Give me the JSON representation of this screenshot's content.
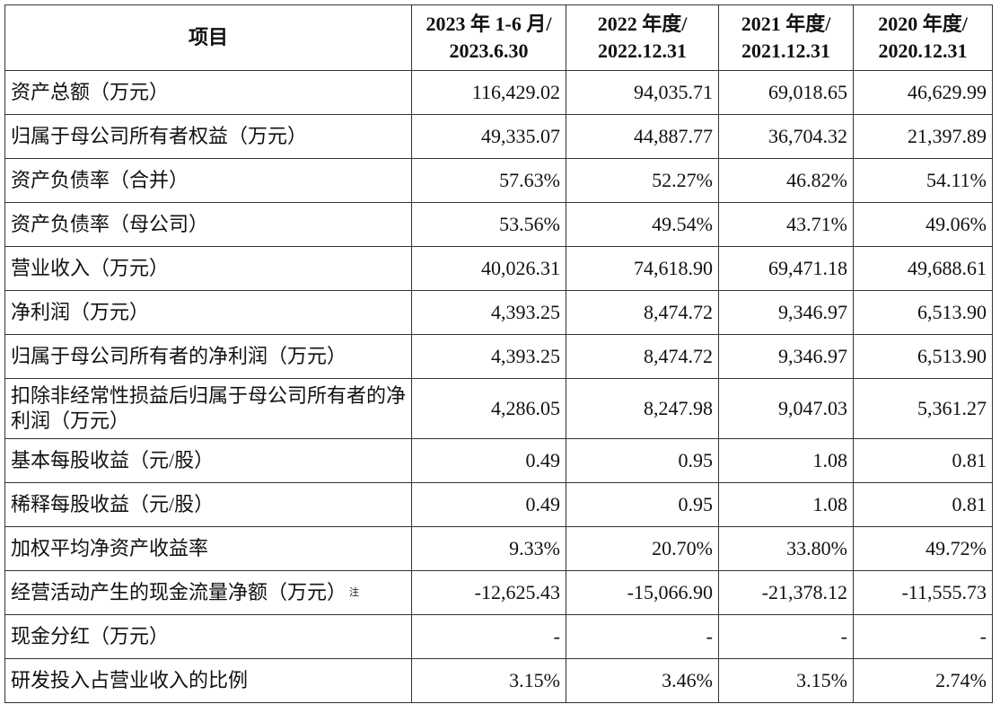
{
  "table": {
    "header": [
      [
        "项目"
      ],
      [
        "2023 年 1-6 月/",
        "2023.6.30"
      ],
      [
        "2022 年度/",
        "2022.12.31"
      ],
      [
        "2021 年度/",
        "2021.12.31"
      ],
      [
        "2020 年度/",
        "2020.12.31"
      ]
    ],
    "rows": [
      {
        "label": "资产总额（万元）",
        "values": [
          "116,429.02",
          "94,035.71",
          "69,018.65",
          "46,629.99"
        ]
      },
      {
        "label": "归属于母公司所有者权益（万元）",
        "values": [
          "49,335.07",
          "44,887.77",
          "36,704.32",
          "21,397.89"
        ]
      },
      {
        "label": "资产负债率（合并）",
        "values": [
          "57.63%",
          "52.27%",
          "46.82%",
          "54.11%"
        ]
      },
      {
        "label": "资产负债率（母公司）",
        "values": [
          "53.56%",
          "49.54%",
          "43.71%",
          "49.06%"
        ]
      },
      {
        "label": "营业收入（万元）",
        "values": [
          "40,026.31",
          "74,618.90",
          "69,471.18",
          "49,688.61"
        ]
      },
      {
        "label": "净利润（万元）",
        "values": [
          "4,393.25",
          "8,474.72",
          "9,346.97",
          "6,513.90"
        ]
      },
      {
        "label": "归属于母公司所有者的净利润（万元）",
        "values": [
          "4,393.25",
          "8,474.72",
          "9,346.97",
          "6,513.90"
        ]
      },
      {
        "label": "扣除非经常性损益后归属于母公司所有者的净利润（万元）",
        "values": [
          "4,286.05",
          "8,247.98",
          "9,047.03",
          "5,361.27"
        ]
      },
      {
        "label": "基本每股收益（元/股）",
        "values": [
          "0.49",
          "0.95",
          "1.08",
          "0.81"
        ]
      },
      {
        "label": "稀释每股收益（元/股）",
        "values": [
          "0.49",
          "0.95",
          "1.08",
          "0.81"
        ]
      },
      {
        "label": "加权平均净资产收益率",
        "values": [
          "9.33%",
          "20.70%",
          "33.80%",
          "49.72%"
        ]
      },
      {
        "label": "经营活动产生的现金流量净额（万元）",
        "note": "注",
        "values": [
          "-12,625.43",
          "-15,066.90",
          "-21,378.12",
          "-11,555.73"
        ]
      },
      {
        "label": "现金分红（万元）",
        "values": [
          "-",
          "-",
          "-",
          "-"
        ]
      },
      {
        "label": "研发投入占营业收入的比例",
        "values": [
          "3.15%",
          "3.46%",
          "3.15%",
          "2.74%"
        ]
      }
    ]
  }
}
